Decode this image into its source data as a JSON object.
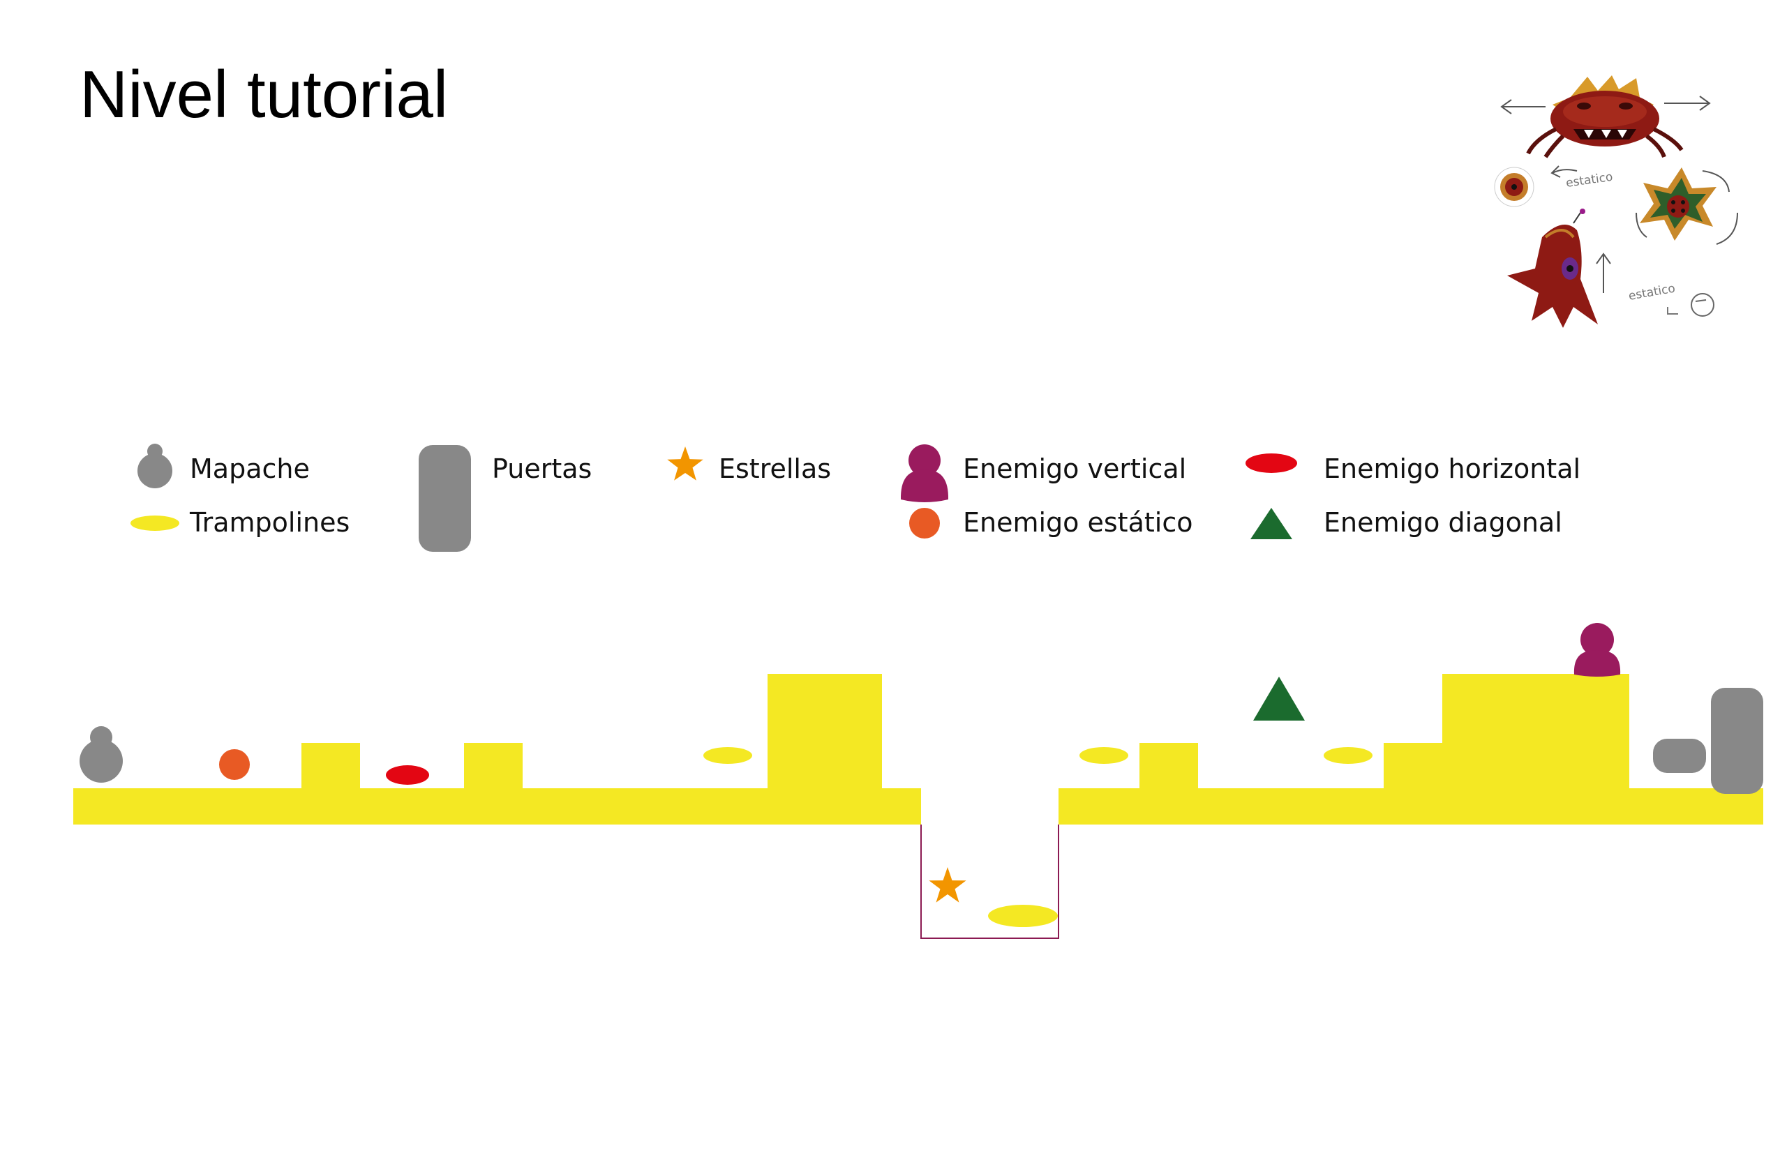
{
  "title": "Nivel tutorial",
  "legend": {
    "mapache": "Mapache",
    "trampolines": "Trampolines",
    "puertas": "Puertas",
    "estrellas": "Estrellas",
    "enemigo_vertical": "Enemigo vertical",
    "enemigo_estatico": "Enemigo estático",
    "enemigo_horizontal": "Enemigo horizontal",
    "enemigo_diagonal": "Enemigo diagonal"
  },
  "sketch": {
    "label_1": "estatico",
    "label_2": "estatico"
  },
  "colors": {
    "ground": "#f4e823",
    "mapache": "#888888",
    "door": "#888888",
    "trampoline": "#f4e823",
    "star": "#f29500",
    "enemy_vertical": "#9a1b5e",
    "enemy_static": "#e85a24",
    "enemy_horizontal": "#e30613",
    "enemy_diagonal": "#1b6b2e",
    "pit_outline": "#8b1a52"
  }
}
